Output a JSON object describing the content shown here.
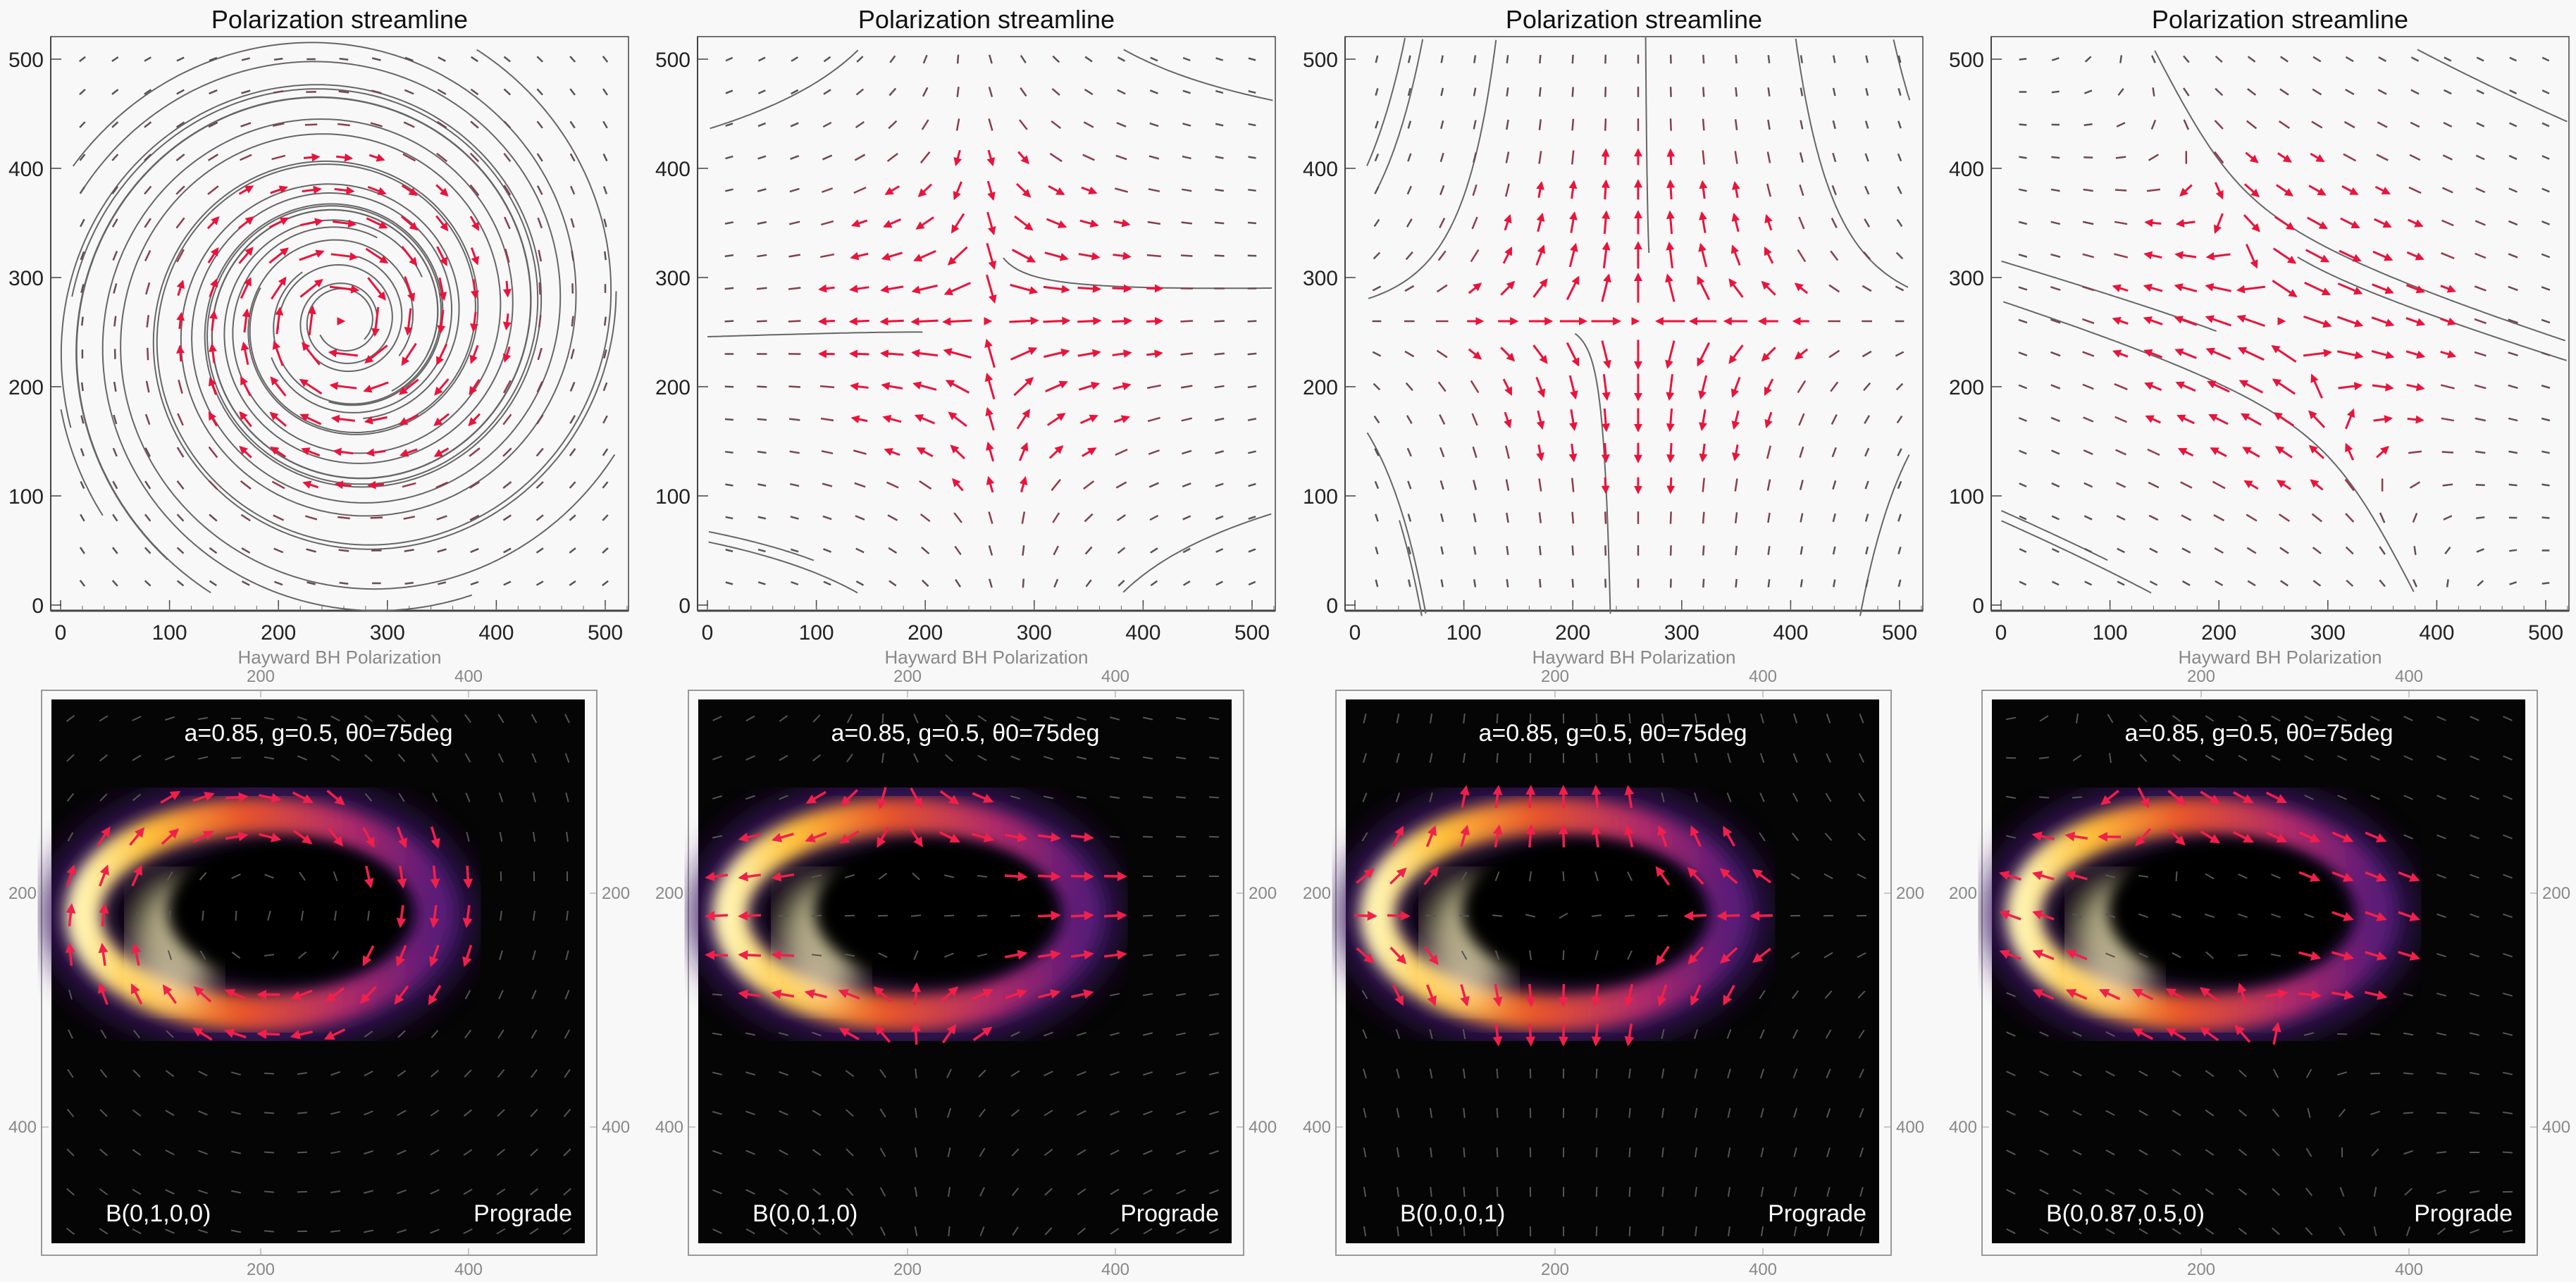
{
  "chart_data": [
    {
      "type": "streamline",
      "title": "Polarization streamline",
      "xlim": [
        0,
        520
      ],
      "ylim": [
        -10,
        520
      ],
      "xticks": [
        "0",
        "100",
        "200",
        "300",
        "400",
        "500"
      ],
      "yticks": [
        "0",
        "100",
        "200",
        "300",
        "400",
        "500"
      ],
      "grid": false,
      "field": "spiral vortex",
      "xlabel": "Hayward BH Polarization",
      "image": {
        "type": "heatmap",
        "colormap": "inferno",
        "xticks": [
          "200",
          "400"
        ],
        "yticks": [
          "200",
          "400"
        ],
        "annotation": "a=0.85, g=0.5, θ0=75deg",
        "corner_left": "B(0,1,0,0)",
        "corner_right": "Prograde"
      }
    },
    {
      "type": "streamline",
      "title": "Polarization streamline",
      "xlim": [
        0,
        520
      ],
      "ylim": [
        -10,
        520
      ],
      "xticks": [
        "0",
        "100",
        "200",
        "300",
        "400",
        "500"
      ],
      "yticks": [
        "0",
        "100",
        "200",
        "300",
        "400",
        "500"
      ],
      "grid": false,
      "field": "horizontal saddle",
      "xlabel": "Hayward BH Polarization",
      "image": {
        "type": "heatmap",
        "colormap": "inferno",
        "xticks": [
          "200",
          "400"
        ],
        "yticks": [
          "200",
          "400"
        ],
        "annotation": "a=0.85, g=0.5, θ0=75deg",
        "corner_left": "B(0,0,1,0)",
        "corner_right": "Prograde"
      }
    },
    {
      "type": "streamline",
      "title": "Polarization streamline",
      "xlim": [
        0,
        520
      ],
      "ylim": [
        -10,
        520
      ],
      "xticks": [
        "0",
        "100",
        "200",
        "300",
        "400",
        "500"
      ],
      "yticks": [
        "0",
        "100",
        "200",
        "300",
        "400",
        "500"
      ],
      "grid": false,
      "field": "vertical radial",
      "xlabel": "Hayward BH Polarization",
      "image": {
        "type": "heatmap",
        "colormap": "inferno",
        "xticks": [
          "200",
          "400"
        ],
        "yticks": [
          "200",
          "400"
        ],
        "annotation": "a=0.85, g=0.5, θ0=75deg",
        "corner_left": "B(0,0,0,1)",
        "corner_right": "Prograde"
      }
    },
    {
      "type": "streamline",
      "title": "Polarization streamline",
      "xlim": [
        0,
        520
      ],
      "ylim": [
        -10,
        520
      ],
      "xticks": [
        "0",
        "100",
        "200",
        "300",
        "400",
        "500"
      ],
      "yticks": [
        "0",
        "100",
        "200",
        "300",
        "400",
        "500"
      ],
      "grid": false,
      "field": "mixed",
      "xlabel": "Hayward BH Polarization",
      "image": {
        "type": "heatmap",
        "colormap": "inferno",
        "xticks": [
          "200",
          "400"
        ],
        "yticks": [
          "200",
          "400"
        ],
        "annotation": "a=0.85, g=0.5, θ0=75deg",
        "corner_left": "B(0,0.87,0.5,0)",
        "corner_right": "Prograde"
      }
    }
  ],
  "colors": {
    "arrow_strong": "#e8143c",
    "arrow_weak": "#555555",
    "streamline": "#666666",
    "background": "#f8f8f8",
    "image_bg": "#050505"
  }
}
